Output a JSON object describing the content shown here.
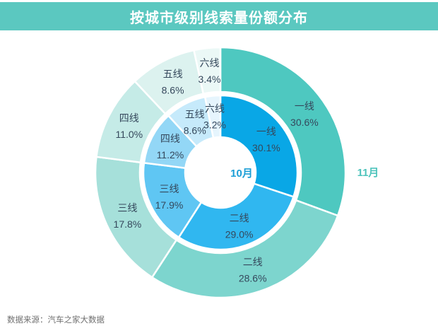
{
  "title": "按城市级别线索量份额分布",
  "source_note": "数据来源：汽车之家大数据",
  "theme": {
    "title_bar_bg": "#5bc8c0",
    "title_color": "#ffffff",
    "slice_label_color": "#35485c",
    "source_color": "#6f6f6f",
    "background": "#ffffff"
  },
  "chart_data": {
    "type": "pie",
    "variant": "nested-donut",
    "title": "按城市级别线索量份额分布",
    "categories": [
      "一线",
      "二线",
      "三线",
      "四线",
      "五线",
      "六线"
    ],
    "unit": "%",
    "direction": "clockwise",
    "start_angle_deg": 0,
    "legend": false,
    "series": [
      {
        "name": "10月",
        "ring": "inner",
        "key": "oct",
        "values": [
          30.1,
          29.0,
          17.9,
          11.2,
          8.6,
          3.2
        ],
        "colors": [
          "#09a7e6",
          "#30b7f0",
          "#5fc6f3",
          "#93d7f6",
          "#c6eafb",
          "#e6f5fd"
        ],
        "name_label_color": "#1b9ed6"
      },
      {
        "name": "11月",
        "ring": "outer",
        "key": "nov",
        "values": [
          30.6,
          28.6,
          17.8,
          11.0,
          8.6,
          3.4
        ],
        "colors": [
          "#4ec8c0",
          "#7dd5ce",
          "#a6e0da",
          "#c5ebe7",
          "#dcf2ef",
          "#ebf8f6"
        ],
        "name_label_color": "#4fc4bc"
      }
    ]
  }
}
